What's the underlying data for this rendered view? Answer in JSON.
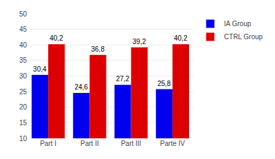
{
  "chart_data": {
    "type": "bar",
    "categories": [
      "Part I",
      "Part II",
      "Part III",
      "Parte IV"
    ],
    "series": [
      {
        "name": "IA Group",
        "color": "#0000ee",
        "values": [
          30.4,
          24.6,
          27.2,
          25.8
        ],
        "value_labels": [
          "30,4",
          "24,6",
          "27,2",
          "25,8"
        ]
      },
      {
        "name": "CTRL Group",
        "color": "#dd0000",
        "values": [
          40.2,
          36.8,
          39.2,
          40.2
        ],
        "value_labels": [
          "40,2",
          "36,8",
          "39,2",
          "40,2"
        ]
      }
    ],
    "ylim": [
      10,
      50
    ],
    "yticks": [
      10,
      15,
      20,
      25,
      30,
      35,
      40,
      45,
      50
    ],
    "grid": true,
    "legend": "upper right",
    "data_labels": true
  }
}
